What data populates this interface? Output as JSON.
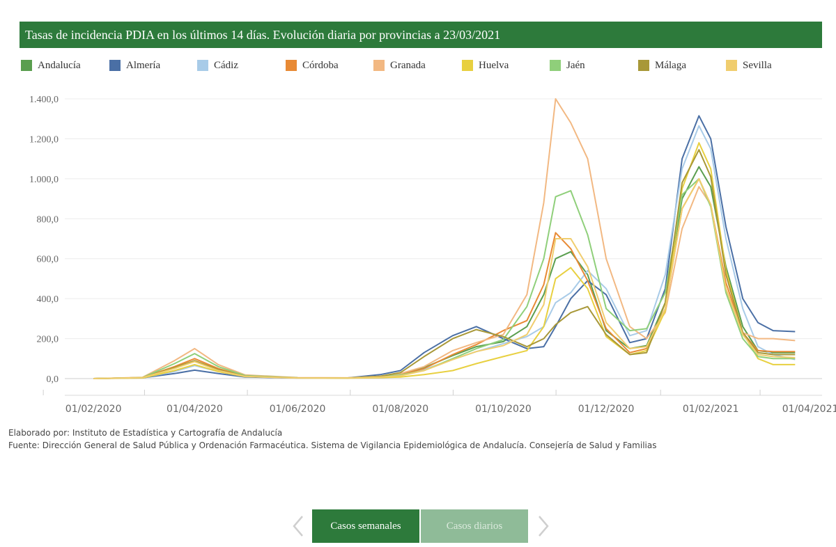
{
  "header": {
    "title": "Tasas de incidencia PDIA en los últimos 14 días. Evolución diaria por provincias a 23/03/2021"
  },
  "footer": {
    "elaborado": "Elaborado por: Instituto de Estadística y Cartografía de Andalucía",
    "fuente": "Fuente: Dirección General de Salud Pública y Ordenación Farmacéutica. Sistema de Vigilancia Epidemiológica de Andalucía. Consejería de Salud y Familias"
  },
  "nav": {
    "weekly_label": "Casos semanales",
    "daily_label": "Casos diarios",
    "prev_icon": "chevron-left-icon",
    "next_icon": "chevron-right-icon"
  },
  "colors": {
    "header_bg": "#2d7a3b",
    "button_active": "#2d7a3b",
    "button_inactive": "#8fbb98"
  },
  "chart_data": {
    "type": "line",
    "title": "Tasas de incidencia PDIA en los últimos 14 días. Evolución diaria por provincias a 23/03/2021",
    "xlabel": "",
    "ylabel": "",
    "ylim": [
      0,
      1400
    ],
    "yticks": [
      "0,0",
      "200,0",
      "400,0",
      "600,0",
      "800,0",
      "1.000,0",
      "1.200,0",
      "1.400,0"
    ],
    "ytick_values": [
      0,
      200,
      400,
      600,
      800,
      1000,
      1200,
      1400
    ],
    "xticks": [
      "01/02/2020",
      "01/04/2020",
      "01/06/2020",
      "01/08/2020",
      "01/10/2020",
      "01/12/2020",
      "01/02/2021",
      "01/04/2021"
    ],
    "xtick_dates": [
      "2020-02-01",
      "2020-04-01",
      "2020-06-01",
      "2020-08-01",
      "2020-10-01",
      "2020-12-01",
      "2021-02-01",
      "2021-04-01"
    ],
    "xlim": [
      "2020-01-15",
      "2021-04-08"
    ],
    "grid": true,
    "legend_position": "top",
    "dates": [
      "2020-02-01",
      "2020-03-01",
      "2020-03-20",
      "2020-04-01",
      "2020-04-15",
      "2020-05-01",
      "2020-06-01",
      "2020-07-01",
      "2020-07-20",
      "2020-08-01",
      "2020-08-15",
      "2020-09-01",
      "2020-09-15",
      "2020-10-01",
      "2020-10-15",
      "2020-10-25",
      "2020-11-01",
      "2020-11-10",
      "2020-11-20",
      "2020-12-01",
      "2020-12-15",
      "2020-12-25",
      "2021-01-05",
      "2021-01-15",
      "2021-01-25",
      "2021-02-01",
      "2021-02-10",
      "2021-02-20",
      "2021-03-01",
      "2021-03-10",
      "2021-03-23"
    ],
    "series": [
      {
        "name": "Andalucía",
        "color": "#5a9e4f",
        "values": [
          0,
          5,
          55,
          88,
          45,
          12,
          4,
          3,
          10,
          22,
          55,
          115,
          160,
          185,
          260,
          420,
          600,
          635,
          520,
          240,
          150,
          165,
          380,
          900,
          1060,
          960,
          560,
          260,
          140,
          130,
          130
        ]
      },
      {
        "name": "Almería",
        "color": "#4a6fa5",
        "values": [
          0,
          4,
          25,
          42,
          25,
          8,
          3,
          4,
          20,
          40,
          130,
          215,
          260,
          200,
          150,
          160,
          260,
          400,
          490,
          420,
          180,
          200,
          450,
          1100,
          1315,
          1200,
          760,
          400,
          280,
          240,
          235
        ]
      },
      {
        "name": "Cádiz",
        "color": "#a8cbe8",
        "values": [
          0,
          4,
          35,
          65,
          35,
          10,
          3,
          3,
          8,
          15,
          45,
          95,
          135,
          175,
          210,
          260,
          380,
          430,
          540,
          450,
          215,
          240,
          520,
          1050,
          1265,
          1150,
          700,
          350,
          160,
          120,
          95
        ]
      },
      {
        "name": "Córdoba",
        "color": "#e88a35",
        "values": [
          0,
          5,
          60,
          100,
          50,
          13,
          4,
          3,
          10,
          20,
          50,
          120,
          170,
          240,
          290,
          470,
          730,
          650,
          490,
          250,
          130,
          150,
          350,
          850,
          1000,
          870,
          480,
          230,
          140,
          135,
          135
        ]
      },
      {
        "name": "Granada",
        "color": "#f2b882",
        "values": [
          0,
          6,
          90,
          150,
          70,
          18,
          5,
          4,
          12,
          25,
          60,
          140,
          180,
          220,
          420,
          880,
          1400,
          1280,
          1100,
          600,
          260,
          200,
          330,
          750,
          960,
          870,
          450,
          230,
          200,
          200,
          190
        ]
      },
      {
        "name": "Huelva",
        "color": "#e8d040",
        "values": [
          0,
          3,
          40,
          70,
          35,
          10,
          3,
          2,
          5,
          8,
          20,
          40,
          75,
          110,
          140,
          260,
          500,
          555,
          450,
          210,
          120,
          140,
          340,
          950,
          1180,
          1050,
          540,
          230,
          100,
          70,
          70
        ]
      },
      {
        "name": "Jaén",
        "color": "#8fcf7a",
        "values": [
          0,
          5,
          75,
          125,
          60,
          15,
          4,
          3,
          10,
          18,
          40,
          100,
          150,
          195,
          360,
          600,
          910,
          940,
          720,
          350,
          240,
          250,
          430,
          920,
          1000,
          860,
          430,
          200,
          110,
          100,
          100
        ]
      },
      {
        "name": "Málaga",
        "color": "#a89838",
        "values": [
          0,
          5,
          55,
          90,
          45,
          12,
          4,
          3,
          12,
          30,
          110,
          200,
          245,
          210,
          160,
          200,
          270,
          330,
          360,
          220,
          120,
          130,
          380,
          980,
          1145,
          1010,
          520,
          230,
          130,
          120,
          120
        ]
      },
      {
        "name": "Sevilla",
        "color": "#f0cd6e",
        "values": [
          0,
          5,
          50,
          85,
          40,
          11,
          3,
          3,
          8,
          14,
          40,
          95,
          135,
          165,
          220,
          370,
          700,
          700,
          560,
          280,
          150,
          160,
          350,
          850,
          1000,
          870,
          450,
          220,
          120,
          110,
          105
        ]
      }
    ]
  }
}
